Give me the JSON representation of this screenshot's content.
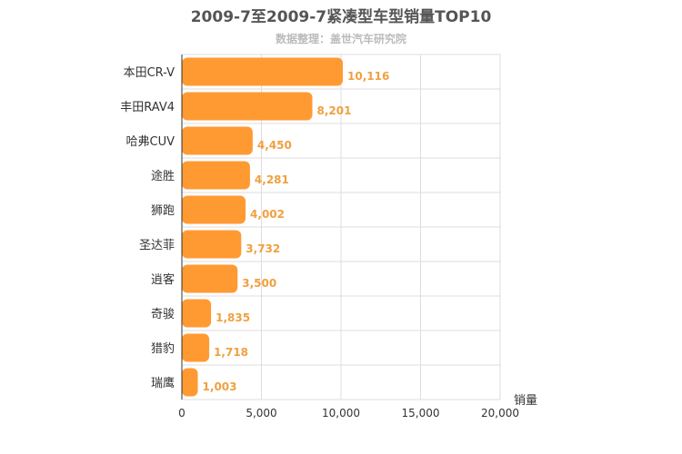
{
  "chart_data": {
    "type": "bar",
    "orientation": "horizontal",
    "title": "2009-7至2009-7紧凑型车型销量TOP10",
    "subtitle": "数据整理：盖世汽车研究院",
    "xlabel": "销量",
    "ylabel": "",
    "categories": [
      "本田CR-V",
      "丰田RAV4",
      "哈弗CUV",
      "途胜",
      "狮跑",
      "圣达菲",
      "逍客",
      "奇骏",
      "猎豹",
      "瑞鹰"
    ],
    "values": [
      10116,
      8201,
      4450,
      4281,
      4002,
      3732,
      3500,
      1835,
      1718,
      1003
    ],
    "value_labels": [
      "10,116",
      "8,201",
      "4,450",
      "4,281",
      "4,002",
      "3,732",
      "3,500",
      "1,835",
      "1,718",
      "1,003"
    ],
    "xlim": [
      0,
      20000
    ],
    "x_ticks": [
      0,
      5000,
      10000,
      15000,
      20000
    ],
    "x_tick_labels": [
      "0",
      "5,000",
      "10,000",
      "15,000",
      "20,000"
    ],
    "grid": true,
    "legend": "none",
    "bar_color": "#ff9a33",
    "label_color": "#f0a040"
  }
}
